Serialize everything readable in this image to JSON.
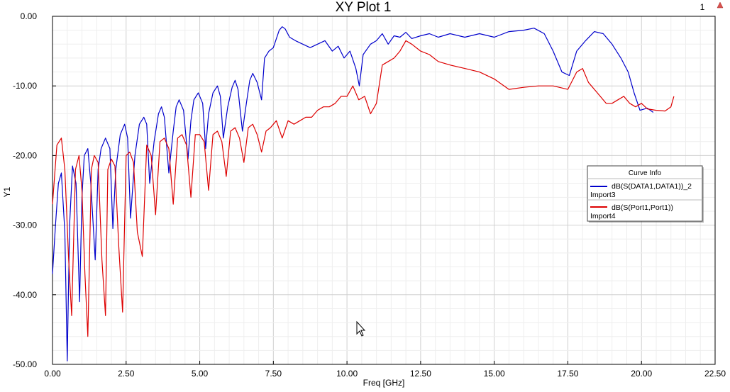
{
  "window": {
    "title": "XY Plot 1",
    "plot_number": "1"
  },
  "toolbar": {
    "marker_icon": "triangle-marker-icon"
  },
  "legend": {
    "title": "Curve Info",
    "entries": [
      {
        "name": "dB(S(DATA1,DATA1))_2",
        "source": "Import3",
        "color": "#0000cc"
      },
      {
        "name": "dB(S(Port1,Port1))",
        "source": "Import4",
        "color": "#dd0000"
      }
    ]
  },
  "chart_data": {
    "type": "line",
    "title": "XY Plot 1",
    "xlabel": "Freq [GHz]",
    "ylabel": "Y1",
    "xlim": [
      0,
      22.5
    ],
    "ylim": [
      -50,
      0
    ],
    "grid": true,
    "legend_position": "right",
    "x_ticks": [
      "0.00",
      "2.50",
      "5.00",
      "7.50",
      "10.00",
      "12.50",
      "15.00",
      "17.50",
      "20.00",
      "22.50"
    ],
    "y_ticks": [
      "0.00",
      "-10.00",
      "-20.00",
      "-30.00",
      "-40.00",
      "-50.00"
    ],
    "series": [
      {
        "name": "dB(S(DATA1,DATA1))_2",
        "color": "#0000cc",
        "x": [
          0,
          0.1,
          0.2,
          0.3,
          0.42,
          0.5,
          0.58,
          0.68,
          0.8,
          0.92,
          1.0,
          1.08,
          1.2,
          1.3,
          1.45,
          1.55,
          1.65,
          1.8,
          1.95,
          2.05,
          2.15,
          2.3,
          2.45,
          2.55,
          2.65,
          2.8,
          2.95,
          3.1,
          3.2,
          3.3,
          3.45,
          3.6,
          3.7,
          3.8,
          3.95,
          4.1,
          4.2,
          4.3,
          4.45,
          4.6,
          4.7,
          4.8,
          4.95,
          5.1,
          5.2,
          5.3,
          5.45,
          5.6,
          5.7,
          5.8,
          5.95,
          6.1,
          6.2,
          6.3,
          6.45,
          6.6,
          6.7,
          6.8,
          6.95,
          7.1,
          7.2,
          7.35,
          7.5,
          7.7,
          7.8,
          7.9,
          8.05,
          8.25,
          8.5,
          8.75,
          9.0,
          9.25,
          9.5,
          9.7,
          9.9,
          10.1,
          10.3,
          10.42,
          10.55,
          10.8,
          11.0,
          11.2,
          11.4,
          11.6,
          11.8,
          12.0,
          12.2,
          12.5,
          12.8,
          13.1,
          13.5,
          14.0,
          14.5,
          15.0,
          15.5,
          16.0,
          16.35,
          16.7,
          17.0,
          17.3,
          17.55,
          17.8,
          18.1,
          18.4,
          18.7,
          19.0,
          19.3,
          19.55,
          19.75,
          19.95,
          20.2,
          20.4
        ],
        "y": [
          -37,
          -30,
          -24,
          -22.5,
          -31,
          -49.5,
          -30,
          -21.5,
          -24,
          -41,
          -26,
          -20,
          -19,
          -24,
          -35,
          -22,
          -19,
          -17.5,
          -19,
          -30.5,
          -22,
          -17,
          -15.5,
          -17.5,
          -29,
          -20,
          -15.5,
          -14.5,
          -15.5,
          -24,
          -18,
          -14,
          -13,
          -14.5,
          -22.5,
          -16.5,
          -13,
          -12,
          -13.5,
          -20.5,
          -15,
          -12,
          -11,
          -12.5,
          -19,
          -14,
          -11,
          -10,
          -11.5,
          -17.5,
          -13,
          -10.2,
          -9.2,
          -10.5,
          -16.5,
          -12,
          -9.2,
          -8.2,
          -9.5,
          -12,
          -6,
          -5,
          -4.5,
          -2,
          -1.5,
          -1.8,
          -3,
          -3.5,
          -4,
          -4.5,
          -4,
          -3.5,
          -5,
          -4.3,
          -6,
          -5,
          -7.5,
          -10,
          -5.5,
          -4,
          -3.5,
          -2.5,
          -4,
          -2.8,
          -3,
          -2.3,
          -3.2,
          -2.8,
          -2.5,
          -3,
          -2.5,
          -3,
          -2.5,
          -3,
          -2.2,
          -2,
          -1.7,
          -2.5,
          -5,
          -8,
          -8.5,
          -5,
          -3.5,
          -2.2,
          -2.5,
          -4,
          -6,
          -8,
          -11,
          -13.5,
          -13.2,
          -13.8
        ]
      },
      {
        "name": "dB(S(Port1,Port1))",
        "color": "#dd0000",
        "x": [
          0,
          0.15,
          0.3,
          0.42,
          0.55,
          0.65,
          0.78,
          0.9,
          1.0,
          1.1,
          1.2,
          1.32,
          1.42,
          1.55,
          1.68,
          1.8,
          1.88,
          2.0,
          2.12,
          2.25,
          2.38,
          2.5,
          2.62,
          2.75,
          2.88,
          3.05,
          3.2,
          3.35,
          3.5,
          3.65,
          3.8,
          3.95,
          4.1,
          4.25,
          4.4,
          4.55,
          4.7,
          4.85,
          5.0,
          5.15,
          5.3,
          5.45,
          5.6,
          5.75,
          5.9,
          6.05,
          6.2,
          6.35,
          6.5,
          6.65,
          6.8,
          6.95,
          7.1,
          7.25,
          7.4,
          7.6,
          7.8,
          8.0,
          8.2,
          8.4,
          8.6,
          8.8,
          9.0,
          9.2,
          9.4,
          9.6,
          9.8,
          10.0,
          10.2,
          10.4,
          10.6,
          10.8,
          11.0,
          11.2,
          11.4,
          11.6,
          11.8,
          12.0,
          12.2,
          12.5,
          12.8,
          13.1,
          13.5,
          14.0,
          14.5,
          15.0,
          15.5,
          16.0,
          16.5,
          17.0,
          17.5,
          17.8,
          18.0,
          18.2,
          18.5,
          18.8,
          19.0,
          19.2,
          19.4,
          19.6,
          19.8,
          20.0,
          20.2,
          20.5,
          20.8,
          21.0,
          21.1
        ],
        "y": [
          -27,
          -18.5,
          -17.5,
          -22,
          -35,
          -43,
          -22,
          -20,
          -25,
          -37,
          -46,
          -22,
          -20,
          -21,
          -35,
          -43,
          -22,
          -20.5,
          -21.5,
          -33,
          -42.5,
          -20,
          -19.5,
          -21,
          -31,
          -34.5,
          -18.5,
          -20,
          -28.5,
          -18,
          -17.5,
          -19,
          -27,
          -17.5,
          -17,
          -18.5,
          -26,
          -17,
          -17,
          -18,
          -25,
          -17,
          -16.5,
          -18,
          -23,
          -16.5,
          -16,
          -17.5,
          -21,
          -16,
          -15.5,
          -17,
          -19.5,
          -16.5,
          -16,
          -15,
          -17.5,
          -15,
          -15.5,
          -15,
          -14.5,
          -14.5,
          -13.5,
          -13,
          -13,
          -12.5,
          -11.5,
          -11.5,
          -10,
          -12,
          -11.5,
          -14,
          -12.5,
          -7,
          -6.5,
          -6,
          -5,
          -3.5,
          -4,
          -5,
          -5.5,
          -6.5,
          -7,
          -7.5,
          -8,
          -9,
          -10.5,
          -10.2,
          -10,
          -10,
          -10.5,
          -8,
          -7.5,
          -9.5,
          -11,
          -12.5,
          -12.5,
          -12,
          -11.5,
          -12.5,
          -13,
          -12.5,
          -13.3,
          -13.5,
          -13.6,
          -13,
          -11.5
        ]
      }
    ]
  }
}
